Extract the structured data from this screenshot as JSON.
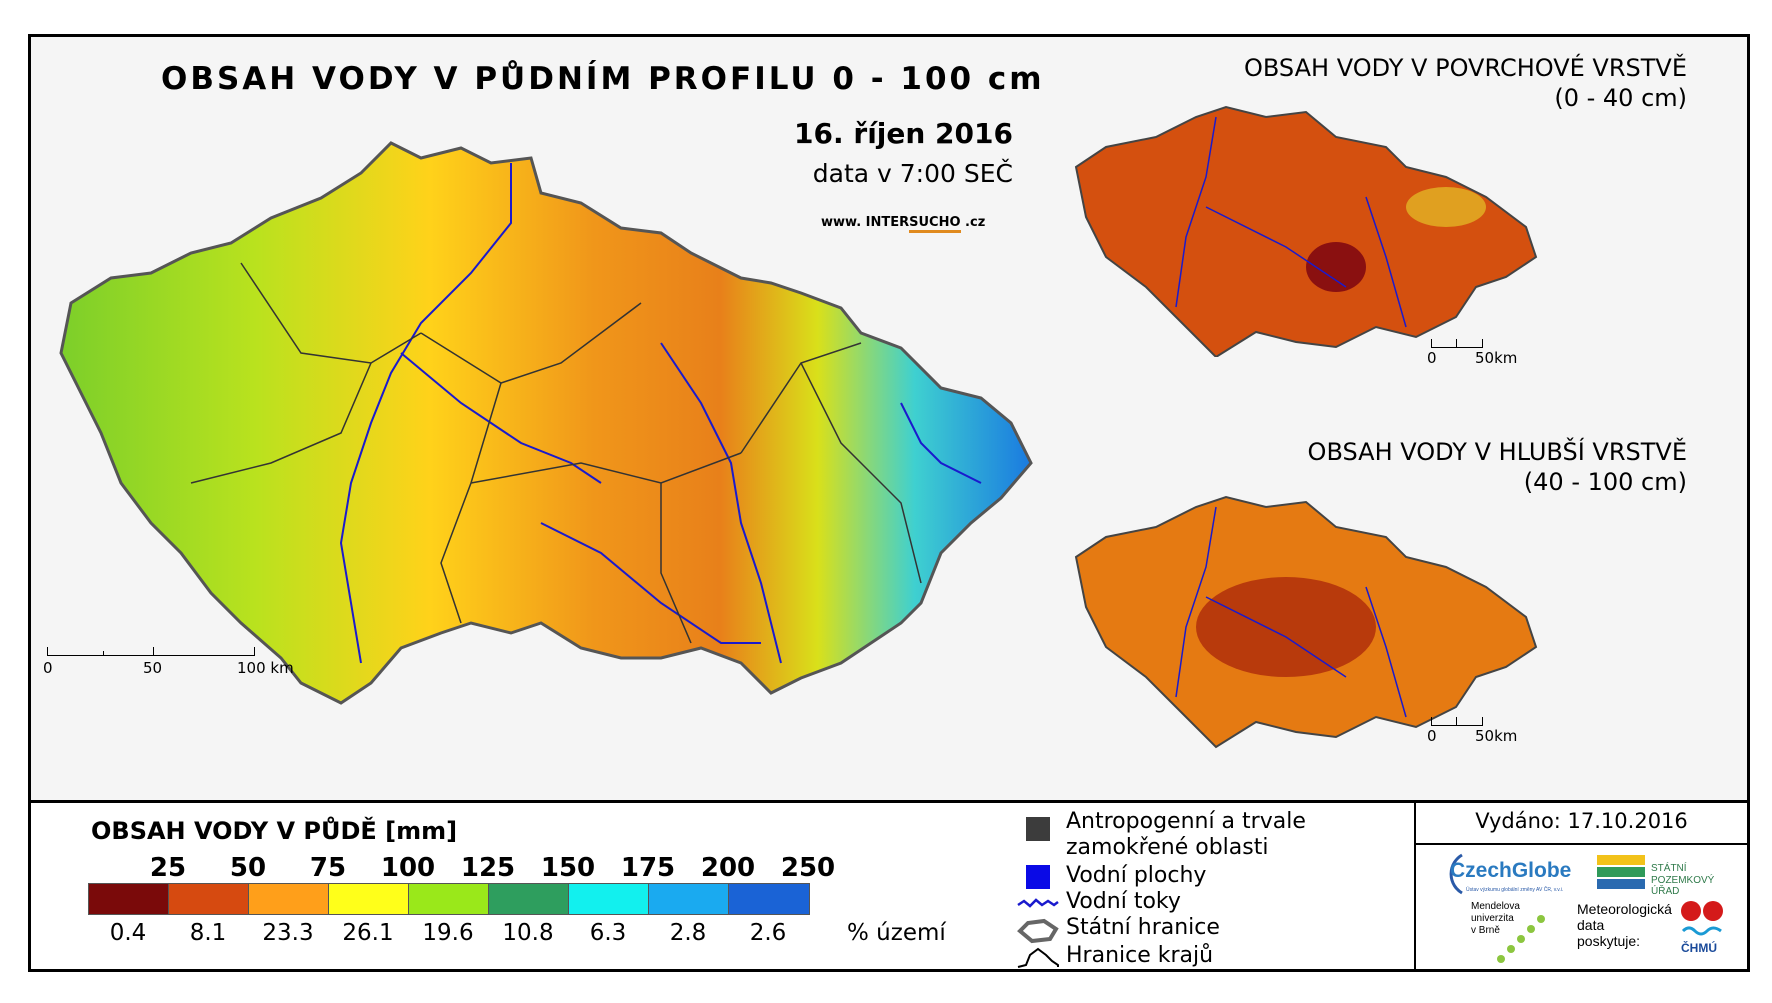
{
  "main": {
    "title": "OBSAH VODY V PŮDNÍM PROFILU 0 - 100 cm",
    "date": "16. říjen 2016",
    "data_time": "data v 7:00 SEČ",
    "website_prefix": "www. INTER",
    "website_mid": "SUCHO",
    "website_suffix": " .cz",
    "scale": {
      "zero": "0",
      "mid": "50",
      "end": "100 km"
    }
  },
  "inset_surface": {
    "title_line1": "OBSAH VODY V POVRCHOVÉ VRSTVĚ",
    "title_line2": "(0 - 40 cm)",
    "scale": {
      "zero": "0",
      "end": "50km"
    }
  },
  "inset_deep": {
    "title_line1": "OBSAH VODY V HLUBŠÍ VRSTVĚ",
    "title_line2": "(40 - 100 cm)",
    "scale": {
      "zero": "0",
      "end": "50km"
    }
  },
  "legend": {
    "title": "OBSAH VODY V PŮDĚ [mm]",
    "thresholds": [
      "25",
      "50",
      "75",
      "100",
      "125",
      "150",
      "175",
      "200",
      "250"
    ],
    "colors": [
      "#7a0a0a",
      "#d64a10",
      "#ff9f1a",
      "#ffff1a",
      "#9ae81a",
      "#2e9e5e",
      "#12f0ee",
      "#1aaaf0",
      "#1a63d6"
    ],
    "percentages": [
      "0.4",
      "8.1",
      "23.3",
      "26.1",
      "19.6",
      "10.8",
      "6.3",
      "2.8",
      "2.6"
    ],
    "percent_unit": "% území"
  },
  "key": {
    "anthropogenic_line1": "Antropogenní a trvale",
    "anthropogenic_line2": "zamokřené oblasti",
    "water_bodies": "Vodní plochy",
    "water_streams": "Vodní toky",
    "state_border": "Státní hranice",
    "regions_border": "Hranice krajů"
  },
  "issued": "Vydáno: 17.10.2016",
  "logos": {
    "czechglobe": "CzechGlobe",
    "czechglobe_sub": "Ústav výzkumu globální změny AV ČR, v.v.i.",
    "spu_line1": "STÁTNÍ",
    "spu_line2": "POZEMKOVÝ ÚŘAD",
    "mendel_line1": "Mendelova",
    "mendel_line2": "univerzita",
    "mendel_line3": "v Brně",
    "met_line1": "Meteorologická",
    "met_line2": "data",
    "met_line3": "poskytuje:",
    "chmu": "ČHMÚ"
  }
}
